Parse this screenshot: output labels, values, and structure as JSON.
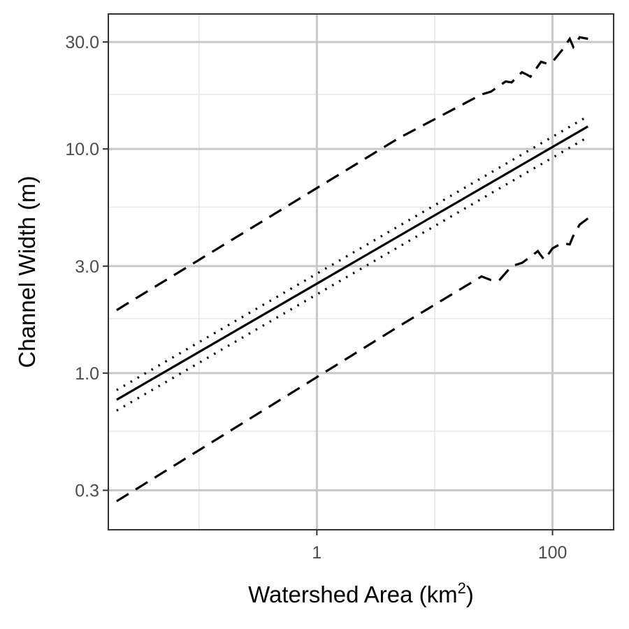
{
  "chart_data": {
    "type": "line",
    "xlabel": "Watershed Area (km",
    "xlabel_sup": "2",
    "xlabel_suffix": ")",
    "ylabel": "Channel Width (m)",
    "x_scale": "log10",
    "y_scale": "log10",
    "xlim": [
      0.017,
      330
    ],
    "ylim": [
      0.2,
      40
    ],
    "x_ticks": [
      {
        "value": 1,
        "label": "1"
      },
      {
        "value": 100,
        "label": "100"
      }
    ],
    "x_minor_gridlines": [
      0.1,
      10
    ],
    "y_ticks": [
      {
        "value": 0.3,
        "label": "0.3"
      },
      {
        "value": 1,
        "label": "1.0"
      },
      {
        "value": 3,
        "label": "3.0"
      },
      {
        "value": 10,
        "label": "10.0"
      },
      {
        "value": 30,
        "label": "30.0"
      }
    ],
    "y_minor_gridlines": [
      0.55,
      1.75,
      5.5,
      17.5
    ],
    "grid": true,
    "legend": "none",
    "series": [
      {
        "style": "solid",
        "points": [
          [
            0.02,
            0.76
          ],
          [
            200,
            12.6
          ]
        ]
      },
      {
        "style": "dotted",
        "points": [
          [
            0.02,
            0.84
          ],
          [
            200,
            14.0
          ]
        ]
      },
      {
        "style": "dotted",
        "points": [
          [
            0.02,
            0.68
          ],
          [
            200,
            11.3
          ]
        ]
      },
      {
        "style": "dashed",
        "points": [
          [
            0.02,
            1.91
          ],
          [
            5,
            11.2
          ],
          [
            25,
            17.5
          ],
          [
            30,
            18.0
          ],
          [
            40,
            20.0
          ],
          [
            45,
            19.8
          ],
          [
            55,
            22.0
          ],
          [
            60,
            21.5
          ],
          [
            65,
            21.0
          ],
          [
            80,
            24.5
          ],
          [
            90,
            24.0
          ],
          [
            100,
            24.5
          ],
          [
            120,
            27.5
          ],
          [
            140,
            31.0
          ],
          [
            150,
            28.5
          ],
          [
            170,
            31.5
          ],
          [
            200,
            31.0
          ]
        ]
      },
      {
        "style": "dashed",
        "points": [
          [
            0.02,
            0.268
          ],
          [
            5,
            1.62
          ],
          [
            25,
            2.7
          ],
          [
            30,
            2.6
          ],
          [
            35,
            2.58
          ],
          [
            45,
            3.0
          ],
          [
            55,
            3.1
          ],
          [
            65,
            3.3
          ],
          [
            75,
            3.5
          ],
          [
            85,
            3.2
          ],
          [
            100,
            3.6
          ],
          [
            120,
            3.8
          ],
          [
            140,
            3.75
          ],
          [
            150,
            4.1
          ],
          [
            170,
            4.6
          ],
          [
            200,
            4.9
          ]
        ]
      }
    ]
  }
}
